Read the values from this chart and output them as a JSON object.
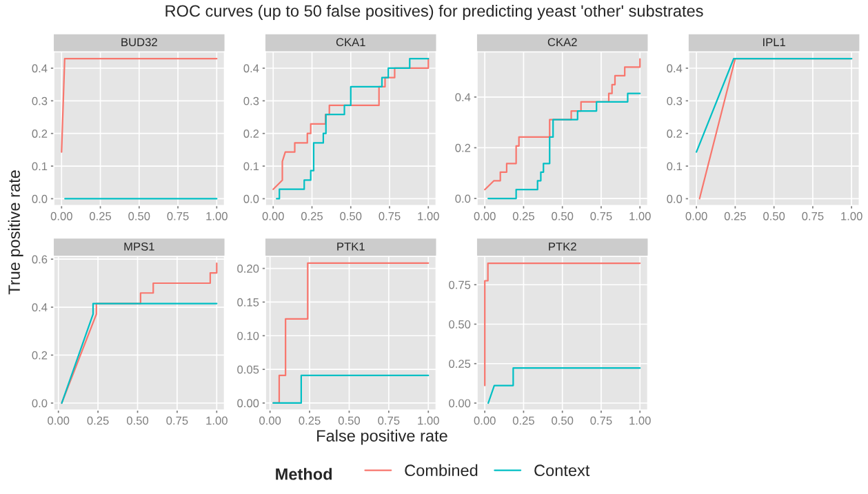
{
  "chart_data": [
    {
      "type": "line",
      "title": "BUD32",
      "annotations": [
        "ROC curves (up to 50 false positives) for predicting yeast 'other' substrates"
      ],
      "ylabel": "True positive rate",
      "legend_title": "Method",
      "legend": "bottom",
      "grid": true,
      "xlim": [
        -0.05,
        1.05
      ],
      "xticks": [
        {
          "value": 0,
          "label": "0.00"
        },
        {
          "value": 0.25,
          "label": "0.25"
        },
        {
          "value": 0.5,
          "label": "0.50"
        },
        {
          "value": 0.75,
          "label": "0.75"
        },
        {
          "value": 1,
          "label": "1.00"
        }
      ],
      "ylim": [
        -0.021,
        0.45
      ],
      "yticks": [
        {
          "value": 0,
          "label": "0.0"
        },
        {
          "value": 0.1,
          "label": "0.1"
        },
        {
          "value": 0.2,
          "label": "0.2"
        },
        {
          "value": 0.3,
          "label": "0.3"
        },
        {
          "value": 0.4,
          "label": "0.4"
        }
      ],
      "series": [
        {
          "name": "Combined",
          "color": "#f8766d",
          "x": [
            0,
            0.02,
            1.0
          ],
          "values": [
            0.143,
            0.429,
            0.429
          ]
        },
        {
          "name": "Context",
          "color": "#00bfc4",
          "x": [
            0.022,
            1.0
          ],
          "values": [
            0,
            0
          ]
        }
      ]
    },
    {
      "type": "line",
      "title": "CKA1",
      "grid": true,
      "xlim": [
        -0.05,
        1.05
      ],
      "xticks": [
        {
          "value": 0,
          "label": "0.00"
        },
        {
          "value": 0.25,
          "label": "0.25"
        },
        {
          "value": 0.5,
          "label": "0.50"
        },
        {
          "value": 0.75,
          "label": "0.75"
        },
        {
          "value": 1,
          "label": "1.00"
        }
      ],
      "ylim": [
        -0.021,
        0.45
      ],
      "yticks": [
        {
          "value": 0,
          "label": "0.0"
        },
        {
          "value": 0.1,
          "label": "0.1"
        },
        {
          "value": 0.2,
          "label": "0.2"
        },
        {
          "value": 0.3,
          "label": "0.3"
        },
        {
          "value": 0.4,
          "label": "0.4"
        }
      ],
      "series": [
        {
          "color": "#f8766d",
          "x": [
            0,
            0.059,
            0.059,
            0.078,
            0.139,
            0.139,
            0.22,
            0.22,
            0.242,
            0.242,
            0.337,
            0.337,
            0.362,
            0.362,
            0.682,
            0.682,
            0.721,
            0.721,
            0.783,
            0.783,
            1.0,
            1.0
          ],
          "values": [
            0.029,
            0.057,
            0.114,
            0.143,
            0.143,
            0.171,
            0.171,
            0.2,
            0.2,
            0.229,
            0.229,
            0.258,
            0.258,
            0.286,
            0.286,
            0.343,
            0.343,
            0.371,
            0.371,
            0.4,
            0.4,
            0.429
          ]
        },
        {
          "color": "#00bfc4",
          "x": [
            0.022,
            0.04,
            0.04,
            0.2,
            0.2,
            0.242,
            0.242,
            0.261,
            0.261,
            0.323,
            0.323,
            0.34,
            0.34,
            0.459,
            0.459,
            0.5,
            0.5,
            0.701,
            0.701,
            0.742,
            0.742,
            0.88,
            0.88,
            1.0
          ],
          "values": [
            0,
            0,
            0.029,
            0.029,
            0.057,
            0.057,
            0.086,
            0.086,
            0.171,
            0.171,
            0.2,
            0.2,
            0.258,
            0.258,
            0.286,
            0.286,
            0.343,
            0.343,
            0.371,
            0.371,
            0.4,
            0.4,
            0.429,
            0.429
          ]
        }
      ]
    },
    {
      "type": "line",
      "title": "CKA2",
      "grid": true,
      "xlim": [
        -0.05,
        1.05
      ],
      "xticks": [
        {
          "value": 0,
          "label": "0.00"
        },
        {
          "value": 0.25,
          "label": "0.25"
        },
        {
          "value": 0.5,
          "label": "0.50"
        },
        {
          "value": 0.75,
          "label": "0.75"
        },
        {
          "value": 1,
          "label": "1.00"
        }
      ],
      "ylim": [
        -0.028,
        0.578
      ],
      "yticks": [
        {
          "value": 0,
          "label": "0.0"
        },
        {
          "value": 0.2,
          "label": "0.2"
        },
        {
          "value": 0.4,
          "label": "0.4"
        }
      ],
      "series": [
        {
          "color": "#f8766d",
          "x": [
            0,
            0.059,
            0.1,
            0.1,
            0.141,
            0.141,
            0.202,
            0.202,
            0.22,
            0.22,
            0.418,
            0.418,
            0.557,
            0.557,
            0.62,
            0.62,
            0.799,
            0.799,
            0.82,
            0.82,
            0.839,
            0.839,
            0.902,
            0.902,
            1.0,
            1.0
          ],
          "values": [
            0.035,
            0.07,
            0.07,
            0.104,
            0.104,
            0.138,
            0.138,
            0.207,
            0.207,
            0.242,
            0.242,
            0.311,
            0.311,
            0.345,
            0.345,
            0.381,
            0.381,
            0.414,
            0.414,
            0.449,
            0.449,
            0.484,
            0.484,
            0.518,
            0.518,
            0.55
          ]
        },
        {
          "color": "#00bfc4",
          "x": [
            0.022,
            0.202,
            0.202,
            0.34,
            0.34,
            0.361,
            0.361,
            0.378,
            0.378,
            0.418,
            0.418,
            0.44,
            0.44,
            0.598,
            0.598,
            0.72,
            0.72,
            0.921,
            0.921,
            1.0
          ],
          "values": [
            0,
            0,
            0.035,
            0.035,
            0.07,
            0.07,
            0.104,
            0.104,
            0.138,
            0.138,
            0.242,
            0.242,
            0.311,
            0.311,
            0.345,
            0.345,
            0.381,
            0.381,
            0.414,
            0.414
          ]
        }
      ]
    },
    {
      "type": "line",
      "title": "IPL1",
      "grid": true,
      "xlim": [
        -0.05,
        1.05
      ],
      "xticks": [
        {
          "value": 0,
          "label": "0.00"
        },
        {
          "value": 0.25,
          "label": "0.25"
        },
        {
          "value": 0.5,
          "label": "0.50"
        },
        {
          "value": 0.75,
          "label": "0.75"
        },
        {
          "value": 1,
          "label": "1.00"
        }
      ],
      "ylim": [
        -0.021,
        0.45
      ],
      "yticks": [
        {
          "value": 0,
          "label": "0.0"
        },
        {
          "value": 0.1,
          "label": "0.1"
        },
        {
          "value": 0.2,
          "label": "0.2"
        },
        {
          "value": 0.3,
          "label": "0.3"
        },
        {
          "value": 0.4,
          "label": "0.4"
        }
      ],
      "series": [
        {
          "color": "#f8766d",
          "x": [
            0.02,
            0.25,
            1.0
          ],
          "values": [
            0,
            0.429,
            0.429
          ]
        },
        {
          "color": "#00bfc4",
          "x": [
            0,
            0.24,
            1.0
          ],
          "values": [
            0.143,
            0.429,
            0.429
          ]
        }
      ]
    },
    {
      "type": "line",
      "title": "MPS1",
      "grid": true,
      "xlim": [
        -0.029,
        1.049
      ],
      "xticks": [
        {
          "value": 0,
          "label": "0.00"
        },
        {
          "value": 0.25,
          "label": "0.25"
        },
        {
          "value": 0.5,
          "label": "0.50"
        },
        {
          "value": 0.75,
          "label": "0.75"
        },
        {
          "value": 1,
          "label": "1.00"
        }
      ],
      "ylim": [
        -0.029,
        0.612
      ],
      "yticks": [
        {
          "value": 0,
          "label": "0.0"
        },
        {
          "value": 0.2,
          "label": "0.2"
        },
        {
          "value": 0.4,
          "label": "0.4"
        },
        {
          "value": 0.6,
          "label": "0.6"
        }
      ],
      "series": [
        {
          "color": "#f8766d",
          "x": [
            0.021,
            0.24,
            0.24,
            0.519,
            0.519,
            0.599,
            0.599,
            0.959,
            0.959,
            1.0,
            1.0
          ],
          "values": [
            0,
            0.371,
            0.415,
            0.415,
            0.459,
            0.459,
            0.5,
            0.5,
            0.543,
            0.543,
            0.583
          ]
        },
        {
          "color": "#00bfc4",
          "x": [
            0.021,
            0.219,
            0.219,
            1.0
          ],
          "values": [
            0,
            0.371,
            0.415,
            0.415
          ]
        }
      ]
    },
    {
      "type": "line",
      "title": "PTK1",
      "xlabel": "False positive rate",
      "grid": true,
      "xlim": [
        -0.029,
        1.049
      ],
      "xticks": [
        {
          "value": 0,
          "label": "0.00"
        },
        {
          "value": 0.25,
          "label": "0.25"
        },
        {
          "value": 0.5,
          "label": "0.50"
        },
        {
          "value": 0.75,
          "label": "0.75"
        },
        {
          "value": 1,
          "label": "1.00"
        }
      ],
      "ylim": [
        -0.0104,
        0.218
      ],
      "yticks": [
        {
          "value": 0,
          "label": "0.00"
        },
        {
          "value": 0.05,
          "label": "0.05"
        },
        {
          "value": 0.1,
          "label": "0.10"
        },
        {
          "value": 0.15,
          "label": "0.15"
        },
        {
          "value": 0.2,
          "label": "0.20"
        }
      ],
      "series": [
        {
          "color": "#f8766d",
          "x": [
            0.02,
            0.058,
            0.058,
            0.098,
            0.098,
            0.238,
            0.238,
            1.0
          ],
          "values": [
            0,
            0,
            0.041,
            0.041,
            0.125,
            0.125,
            0.208,
            0.208
          ]
        },
        {
          "color": "#00bfc4",
          "x": [
            0.02,
            0.197,
            0.197,
            1.0
          ],
          "values": [
            0,
            0,
            0.041,
            0.041
          ]
        }
      ]
    },
    {
      "type": "line",
      "title": "PTK2",
      "grid": true,
      "xlim": [
        -0.05,
        1.05
      ],
      "xticks": [
        {
          "value": 0,
          "label": "0.00"
        },
        {
          "value": 0.25,
          "label": "0.25"
        },
        {
          "value": 0.5,
          "label": "0.50"
        },
        {
          "value": 0.75,
          "label": "0.75"
        },
        {
          "value": 1,
          "label": "1.00"
        }
      ],
      "ylim": [
        -0.044,
        0.93
      ],
      "yticks": [
        {
          "value": 0,
          "label": "0.00"
        },
        {
          "value": 0.25,
          "label": "0.25"
        },
        {
          "value": 0.5,
          "label": "0.50"
        },
        {
          "value": 0.75,
          "label": "0.75"
        }
      ],
      "series": [
        {
          "color": "#f8766d",
          "x": [
            0,
            0,
            0.02,
            0.02,
            1.0
          ],
          "values": [
            0.111,
            0.775,
            0.775,
            0.886,
            0.886
          ]
        },
        {
          "color": "#00bfc4",
          "x": [
            0.022,
            0.061,
            0.183,
            0.183,
            1.0
          ],
          "values": [
            0,
            0.111,
            0.111,
            0.222,
            0.222
          ]
        }
      ]
    }
  ]
}
